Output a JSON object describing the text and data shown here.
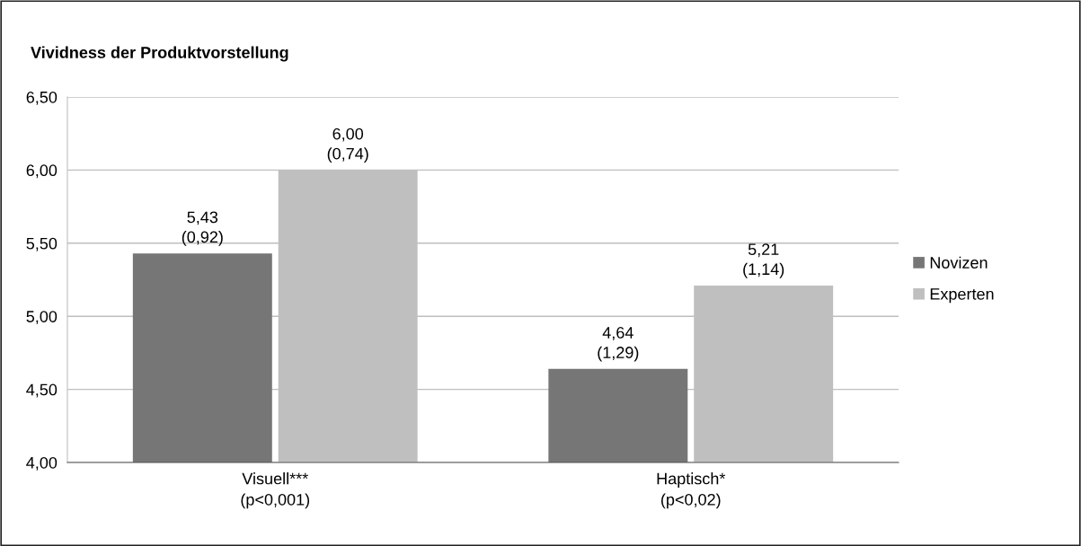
{
  "chart_data": {
    "type": "bar",
    "title": "Vividness der Produktvorstellung",
    "categories": [
      "Visuell***\n(p<0,001)",
      "Haptisch*\n(p<0,02)"
    ],
    "series": [
      {
        "name": "Novizen",
        "color": "#767676",
        "values": [
          5.43,
          4.64
        ],
        "value_labels": [
          "5,43\n(0,92)",
          "4,64\n(1,29)"
        ]
      },
      {
        "name": "Experten",
        "color": "#bfbfbf",
        "values": [
          6.0,
          5.21
        ],
        "value_labels": [
          "6,00\n(0,74)",
          "5,21\n(1,14)"
        ]
      }
    ],
    "ylim": [
      4,
      6.5
    ],
    "yticks": [
      {
        "value": 4,
        "label": "4,00"
      },
      {
        "value": 4.5,
        "label": "4,50"
      },
      {
        "value": 5,
        "label": "5,00"
      },
      {
        "value": 5.5,
        "label": "5,50"
      },
      {
        "value": 6,
        "label": "6,00"
      },
      {
        "value": 6.5,
        "label": "6,50"
      }
    ],
    "grid": "y",
    "legend": "right"
  }
}
